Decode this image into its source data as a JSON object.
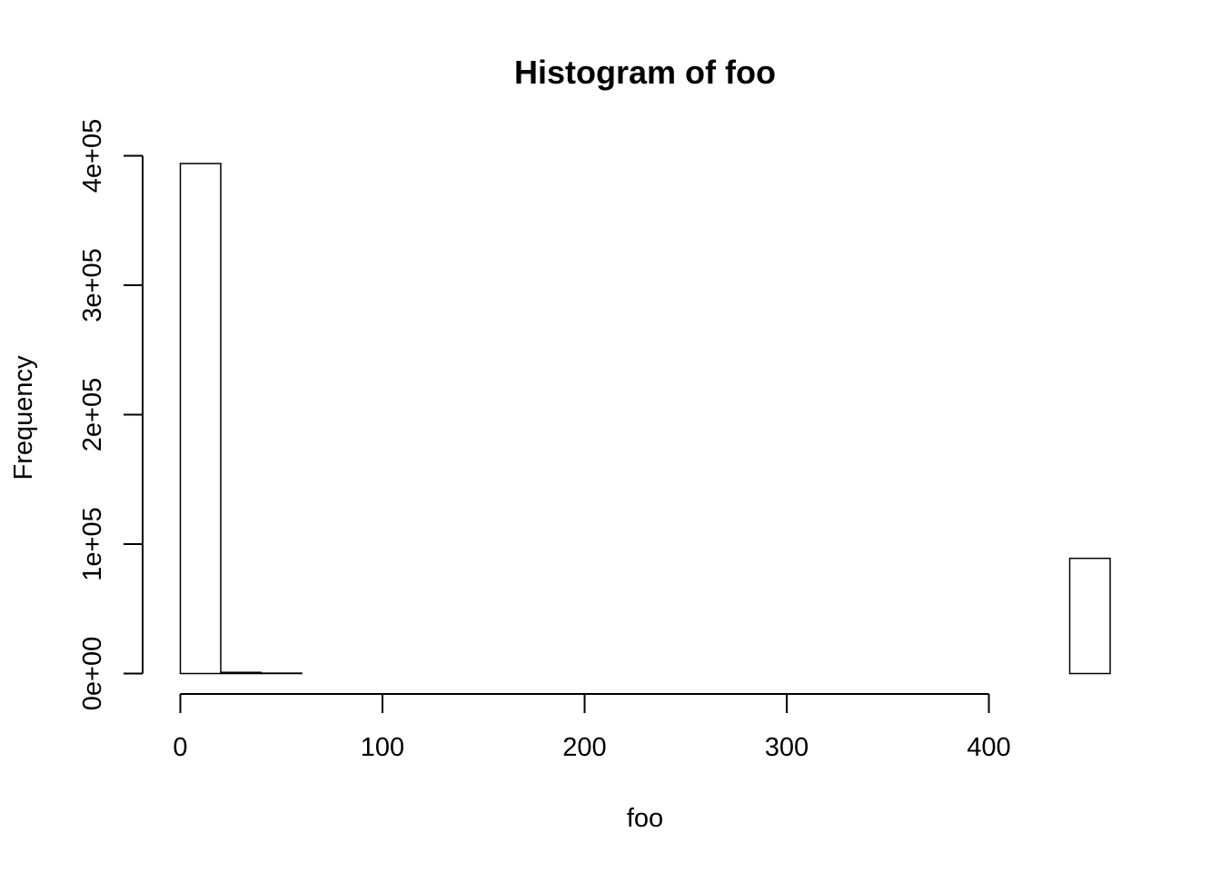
{
  "chart_data": {
    "type": "bar",
    "title": "Histogram of foo",
    "xlabel": "foo",
    "ylabel": "Frequency",
    "bin_width": 20,
    "bins": [
      {
        "x0": 0,
        "x1": 20,
        "count": 394000
      },
      {
        "x0": 20,
        "x1": 40,
        "count": 900
      },
      {
        "x0": 40,
        "x1": 60,
        "count": 300
      },
      {
        "x0": 60,
        "x1": 80,
        "count": 0
      },
      {
        "x0": 80,
        "x1": 100,
        "count": 0
      },
      {
        "x0": 100,
        "x1": 120,
        "count": 0
      },
      {
        "x0": 120,
        "x1": 140,
        "count": 0
      },
      {
        "x0": 140,
        "x1": 160,
        "count": 0
      },
      {
        "x0": 160,
        "x1": 180,
        "count": 0
      },
      {
        "x0": 180,
        "x1": 200,
        "count": 0
      },
      {
        "x0": 200,
        "x1": 220,
        "count": 0
      },
      {
        "x0": 220,
        "x1": 240,
        "count": 0
      },
      {
        "x0": 240,
        "x1": 260,
        "count": 0
      },
      {
        "x0": 260,
        "x1": 280,
        "count": 0
      },
      {
        "x0": 280,
        "x1": 300,
        "count": 0
      },
      {
        "x0": 300,
        "x1": 320,
        "count": 0
      },
      {
        "x0": 320,
        "x1": 340,
        "count": 0
      },
      {
        "x0": 340,
        "x1": 360,
        "count": 0
      },
      {
        "x0": 360,
        "x1": 380,
        "count": 0
      },
      {
        "x0": 380,
        "x1": 400,
        "count": 0
      },
      {
        "x0": 400,
        "x1": 420,
        "count": 0
      },
      {
        "x0": 420,
        "x1": 440,
        "count": 0
      },
      {
        "x0": 440,
        "x1": 460,
        "count": 89000
      }
    ],
    "xlim": [
      0,
      460
    ],
    "ylim": [
      0,
      400000
    ],
    "x_ticks": [
      0,
      100,
      200,
      300,
      400
    ],
    "x_tick_labels": [
      "0",
      "100",
      "200",
      "300",
      "400"
    ],
    "y_ticks": [
      0,
      100000,
      200000,
      300000,
      400000
    ],
    "y_tick_labels": [
      "0e+00",
      "1e+05",
      "2e+05",
      "3e+05",
      "4e+05"
    ],
    "grid": false,
    "legend": "none",
    "colors": {
      "bar_fill": "#ffffff",
      "bar_stroke": "#000000",
      "axis": "#000000",
      "background": "#ffffff"
    }
  }
}
